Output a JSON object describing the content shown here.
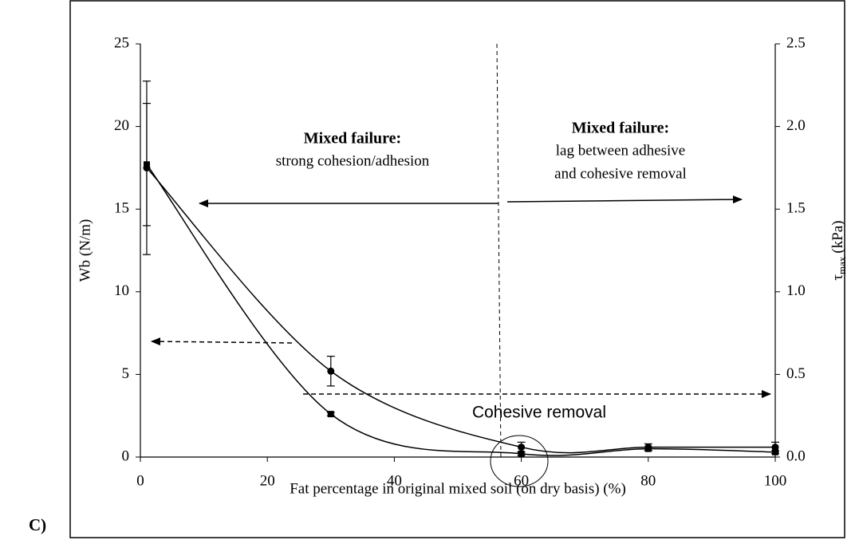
{
  "chart_data": {
    "type": "scatter",
    "panel_label": "C)",
    "x_label": "Fat percentage in original mixed soil (on dry basis) (%)",
    "y_label": "Wb (N/m)",
    "y2_label": {
      "symbol": "τ",
      "subscript": "max",
      "unit": "(kPa)"
    },
    "xlim": [
      0,
      100
    ],
    "xticks": [
      0,
      20,
      40,
      60,
      80,
      100
    ],
    "ylim": [
      0,
      25
    ],
    "yticks": [
      0,
      5,
      10,
      15,
      20,
      25
    ],
    "y2lim": [
      0,
      2.5
    ],
    "y2ticks": [
      {
        "value": 0,
        "label": "0.0"
      },
      0.5,
      {
        "value": 1,
        "label": "1.0"
      },
      1.5,
      {
        "value": 2,
        "label": "2.0"
      },
      2.5
    ],
    "series": [
      {
        "color": "#000000",
        "marker": "circle",
        "x": [
          1,
          30,
          60,
          80,
          100
        ],
        "values": [
          17.5,
          5.2,
          0.6,
          0.6,
          0.6
        ],
        "errors": [
          5.25,
          0.9,
          0.3,
          0.2,
          0.3
        ]
      },
      {
        "color": "#000000",
        "marker": "square",
        "axis": "y2",
        "x": [
          1,
          30,
          60,
          80,
          100
        ],
        "values": [
          1.77,
          0.26,
          0.02,
          0.05,
          0.03
        ],
        "errors": [
          0.37,
          0.01,
          0.01,
          0.01,
          0.01
        ]
      }
    ],
    "annotations": {
      "left_title": "Mixed failure:",
      "left_text": "strong cohesion/adhesion",
      "right_title": "Mixed failure:",
      "right_line1": "lag between adhesive",
      "right_line2": "and cohesive removal",
      "bottom_text": "Cohesive removal"
    }
  }
}
